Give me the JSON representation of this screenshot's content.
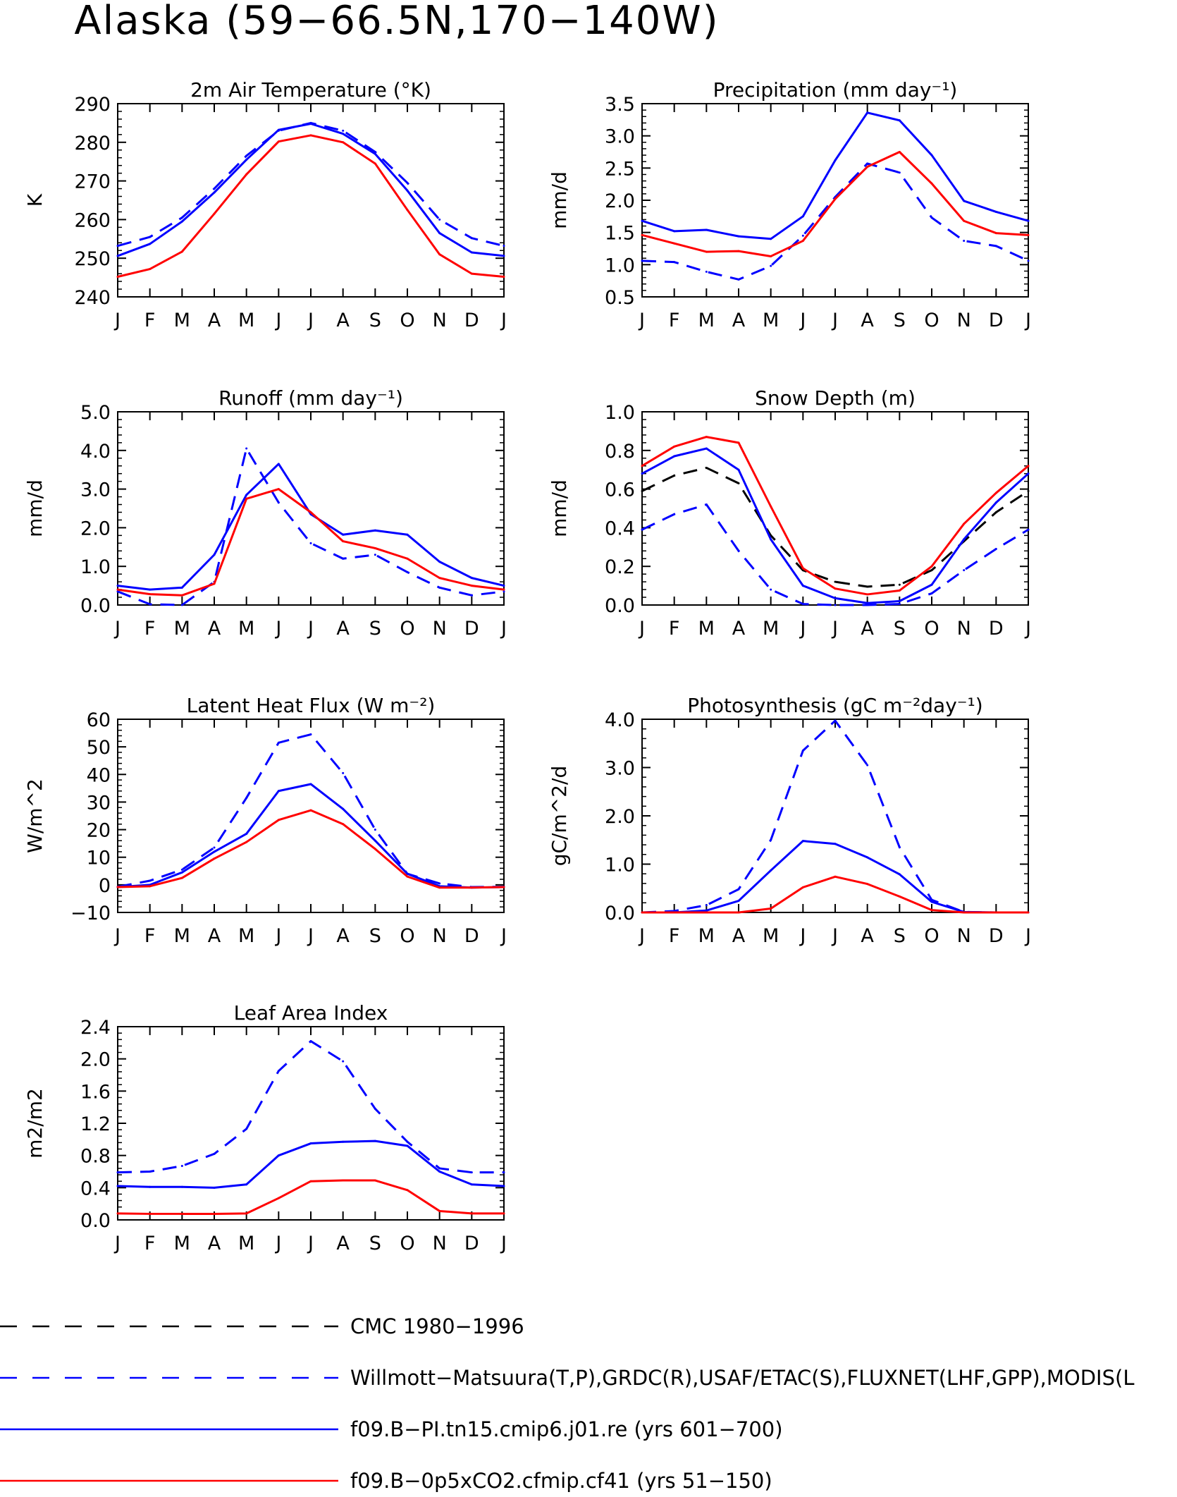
{
  "figure": {
    "title": "Alaska (59−66.5N,170−140W)",
    "months": [
      "J",
      "F",
      "M",
      "A",
      "M",
      "J",
      "J",
      "A",
      "S",
      "O",
      "N",
      "D",
      "J"
    ]
  },
  "colors": {
    "cmc": "#000000",
    "obs": "#0000ff",
    "model_pi": "#0000ff",
    "model_0p5x": "#ff0000"
  },
  "legend": {
    "items": [
      {
        "key": "cmc",
        "label": "CMC 1980−1996",
        "color": "#000000",
        "dash": true
      },
      {
        "key": "obs",
        "label": "Willmott−Matsuura(T,P),GRDC(R),USAF/ETAC(S),FLUXNET(LHF,GPP),MODIS(L",
        "color": "#0000ff",
        "dash": true
      },
      {
        "key": "model_pi",
        "label": "f09.B−PI.tn15.cmip6.j01.re (yrs 601−700)",
        "color": "#0000ff",
        "dash": false
      },
      {
        "key": "model_0p5x",
        "label": "f09.B−0p5xCO2.cfmip.cf41 (yrs 51−150)",
        "color": "#ff0000",
        "dash": false
      }
    ]
  },
  "chart_data": [
    {
      "type": "line",
      "title": "2m Air Temperature (°K)",
      "ylabel": "K",
      "ylim": [
        240,
        290
      ],
      "yticks": [
        240,
        250,
        260,
        270,
        280,
        290
      ],
      "yticklabels": [
        "240",
        "250",
        "260",
        "270",
        "280",
        "290"
      ],
      "series": [
        {
          "key": "obs",
          "values": [
            253.2,
            255.5,
            260.5,
            268,
            276.5,
            283,
            285,
            283,
            277.5,
            269.5,
            260,
            255.2,
            253.2
          ]
        },
        {
          "key": "model_pi",
          "values": [
            250.6,
            253.7,
            259.5,
            267,
            275.5,
            283.2,
            284.8,
            282.2,
            277,
            267.5,
            256.5,
            251.5,
            250.6
          ]
        },
        {
          "key": "model_0p5x",
          "values": [
            245.2,
            247.2,
            251.7,
            261.5,
            271.7,
            280.2,
            281.8,
            280,
            274.5,
            262.5,
            251,
            246,
            245.2
          ]
        }
      ]
    },
    {
      "type": "line",
      "title": "Precipitation (mm day⁻¹)",
      "ylabel": "mm/d",
      "ylim": [
        0.5,
        3.5
      ],
      "yticks": [
        0.5,
        1.0,
        1.5,
        2.0,
        2.5,
        3.0,
        3.5
      ],
      "yticklabels": [
        "0.5",
        "1.0",
        "1.5",
        "2.0",
        "2.5",
        "3.0",
        "3.5"
      ],
      "series": [
        {
          "key": "obs",
          "values": [
            1.06,
            1.04,
            0.89,
            0.77,
            0.98,
            1.45,
            2.05,
            2.57,
            2.43,
            1.73,
            1.37,
            1.29,
            1.06
          ]
        },
        {
          "key": "model_pi",
          "values": [
            1.68,
            1.52,
            1.54,
            1.44,
            1.4,
            1.75,
            2.62,
            3.36,
            3.24,
            2.7,
            1.99,
            1.82,
            1.68
          ]
        },
        {
          "key": "model_0p5x",
          "values": [
            1.46,
            1.33,
            1.2,
            1.21,
            1.13,
            1.37,
            2.02,
            2.52,
            2.75,
            2.26,
            1.68,
            1.49,
            1.46
          ]
        }
      ]
    },
    {
      "type": "line",
      "title": "Runoff (mm day⁻¹)",
      "ylabel": "mm/d",
      "ylim": [
        0,
        5
      ],
      "yticks": [
        0,
        1,
        2,
        3,
        4,
        5
      ],
      "yticklabels": [
        "0.0",
        "1.0",
        "2.0",
        "3.0",
        "4.0",
        "5.0"
      ],
      "series": [
        {
          "key": "obs",
          "values": [
            0.35,
            0.02,
            0.0,
            0.6,
            4.05,
            2.65,
            1.6,
            1.2,
            1.3,
            0.85,
            0.45,
            0.25,
            0.35
          ]
        },
        {
          "key": "model_pi",
          "values": [
            0.5,
            0.4,
            0.45,
            1.3,
            2.85,
            3.65,
            2.35,
            1.82,
            1.93,
            1.82,
            1.12,
            0.7,
            0.5
          ]
        },
        {
          "key": "model_0p5x",
          "values": [
            0.4,
            0.28,
            0.25,
            0.55,
            2.75,
            3.0,
            2.4,
            1.65,
            1.47,
            1.2,
            0.7,
            0.5,
            0.4
          ]
        }
      ]
    },
    {
      "type": "line",
      "title": "Snow Depth (m)",
      "ylabel": "mm/d",
      "ylim": [
        0,
        1
      ],
      "yticks": [
        0,
        0.2,
        0.4,
        0.6,
        0.8,
        1.0
      ],
      "yticklabels": [
        "0.0",
        "0.2",
        "0.4",
        "0.6",
        "0.8",
        "1.0"
      ],
      "series": [
        {
          "key": "cmc",
          "values": [
            0.59,
            0.67,
            0.71,
            0.63,
            0.36,
            0.18,
            0.12,
            0.095,
            0.105,
            0.18,
            0.33,
            0.48,
            0.59
          ]
        },
        {
          "key": "obs",
          "values": [
            0.39,
            0.47,
            0.52,
            0.28,
            0.08,
            0.005,
            0.0,
            0.0,
            0.005,
            0.06,
            0.18,
            0.29,
            0.39
          ]
        },
        {
          "key": "model_pi",
          "values": [
            0.68,
            0.77,
            0.81,
            0.7,
            0.34,
            0.1,
            0.035,
            0.01,
            0.02,
            0.105,
            0.34,
            0.53,
            0.68
          ]
        },
        {
          "key": "model_0p5x",
          "values": [
            0.72,
            0.82,
            0.87,
            0.84,
            0.51,
            0.19,
            0.085,
            0.055,
            0.075,
            0.2,
            0.42,
            0.58,
            0.72
          ]
        }
      ]
    },
    {
      "type": "line",
      "title": "Latent Heat Flux (W m⁻²)",
      "ylabel": "W/m^2",
      "ylim": [
        -10,
        60
      ],
      "yticks": [
        -10,
        0,
        10,
        20,
        30,
        40,
        50,
        60
      ],
      "yticklabels": [
        "−10",
        "0",
        "10",
        "20",
        "30",
        "40",
        "50",
        "60"
      ],
      "series": [
        {
          "key": "obs",
          "values": [
            -0.7,
            1.5,
            5.5,
            13.5,
            31.5,
            51.5,
            54.5,
            40.5,
            20,
            4,
            0.5,
            -0.8,
            -0.7
          ]
        },
        {
          "key": "model_pi",
          "values": [
            -0.8,
            0,
            4.5,
            12,
            18.5,
            34,
            36.5,
            27.5,
            16,
            4,
            -0.5,
            -1,
            -0.8
          ]
        },
        {
          "key": "model_0p5x",
          "values": [
            -0.8,
            -0.5,
            2.5,
            9.5,
            15.5,
            23.5,
            27,
            22,
            13,
            3,
            -1,
            -1,
            -0.8
          ]
        }
      ]
    },
    {
      "type": "line",
      "title": "Photosynthesis (gC m⁻²day⁻¹)",
      "ylabel": "gC/m^2/d",
      "ylim": [
        0,
        4
      ],
      "yticks": [
        0,
        1,
        2,
        3,
        4
      ],
      "yticklabels": [
        "0.0",
        "1.0",
        "2.0",
        "3.0",
        "4.0"
      ],
      "series": [
        {
          "key": "obs",
          "values": [
            0,
            0.03,
            0.15,
            0.48,
            1.5,
            3.35,
            3.97,
            3.05,
            1.35,
            0.26,
            0.01,
            0,
            0
          ]
        },
        {
          "key": "model_pi",
          "values": [
            0,
            0,
            0.04,
            0.24,
            0.87,
            1.48,
            1.42,
            1.14,
            0.79,
            0.22,
            0.01,
            0,
            0
          ]
        },
        {
          "key": "model_0p5x",
          "values": [
            0,
            0,
            0,
            0,
            0.08,
            0.52,
            0.74,
            0.59,
            0.33,
            0.05,
            0,
            0,
            0
          ]
        }
      ]
    },
    {
      "type": "line",
      "title": "Leaf Area Index",
      "ylabel": "m2/m2",
      "ylim": [
        0,
        2.4
      ],
      "yticks": [
        0,
        0.4,
        0.8,
        1.2,
        1.6,
        2.0,
        2.4
      ],
      "yticklabels": [
        "0.0",
        "0.4",
        "0.8",
        "1.2",
        "1.6",
        "2.0",
        "2.4"
      ],
      "series": [
        {
          "key": "obs",
          "values": [
            0.59,
            0.6,
            0.67,
            0.82,
            1.13,
            1.85,
            2.22,
            1.97,
            1.38,
            0.97,
            0.64,
            0.59,
            0.59
          ]
        },
        {
          "key": "model_pi",
          "values": [
            0.42,
            0.41,
            0.41,
            0.4,
            0.44,
            0.8,
            0.95,
            0.97,
            0.98,
            0.92,
            0.6,
            0.44,
            0.42
          ]
        },
        {
          "key": "model_0p5x",
          "values": [
            0.08,
            0.075,
            0.075,
            0.075,
            0.08,
            0.27,
            0.48,
            0.49,
            0.49,
            0.37,
            0.11,
            0.08,
            0.08
          ]
        }
      ]
    }
  ]
}
